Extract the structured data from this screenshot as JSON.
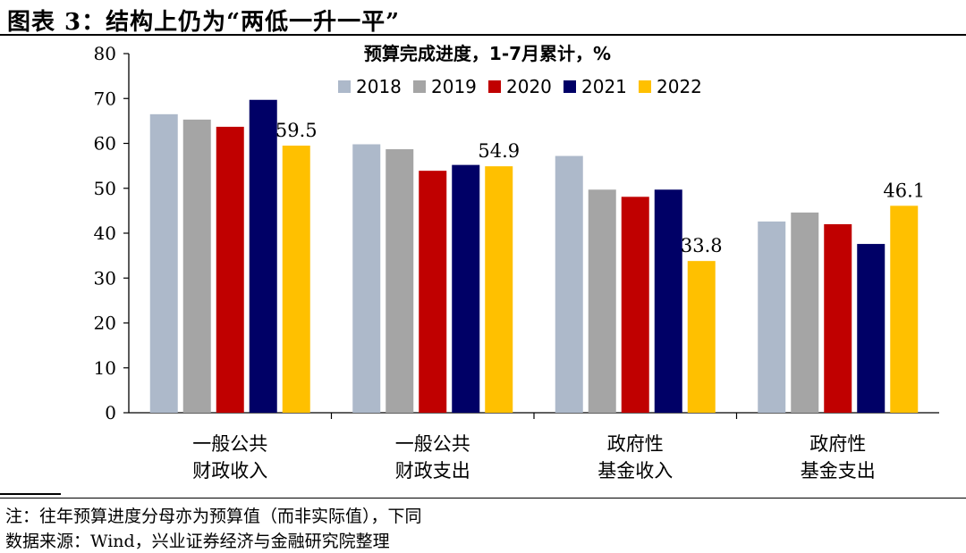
{
  "figure": {
    "title": "图表 3：结构上仍为“两低一升一平”",
    "note": "注：往年预算进度分母亦为预算值（而非实际值），下同",
    "source": "数据来源：Wind，兴业证券经济与金融研究院整理"
  },
  "chart_data": {
    "type": "bar",
    "title": "预算完成进度，1-7月累计，%",
    "categories": [
      [
        "一般公共",
        "财政收入"
      ],
      [
        "一般公共",
        "财政支出"
      ],
      [
        "政府性",
        "基金收入"
      ],
      [
        "政府性",
        "基金支出"
      ]
    ],
    "series": [
      {
        "name": "2018",
        "color": "#adb9ca",
        "values": [
          66.5,
          59.8,
          57.2,
          42.6
        ]
      },
      {
        "name": "2019",
        "color": "#a5a5a5",
        "values": [
          65.3,
          58.7,
          49.7,
          44.6
        ]
      },
      {
        "name": "2020",
        "color": "#c00000",
        "values": [
          63.7,
          53.9,
          48.1,
          42.0
        ]
      },
      {
        "name": "2021",
        "color": "#000066",
        "values": [
          69.7,
          55.2,
          49.7,
          37.6
        ]
      },
      {
        "name": "2022",
        "color": "#ffc000",
        "values": [
          59.5,
          54.9,
          33.8,
          46.1
        ]
      }
    ],
    "data_labels": [
      "59.5",
      "54.9",
      "33.8",
      "46.1"
    ],
    "ylim": [
      0,
      80
    ],
    "yticks": [
      0,
      10,
      20,
      30,
      40,
      50,
      60,
      70,
      80
    ],
    "legend_position": "top-center",
    "xlabel": "",
    "ylabel": ""
  }
}
